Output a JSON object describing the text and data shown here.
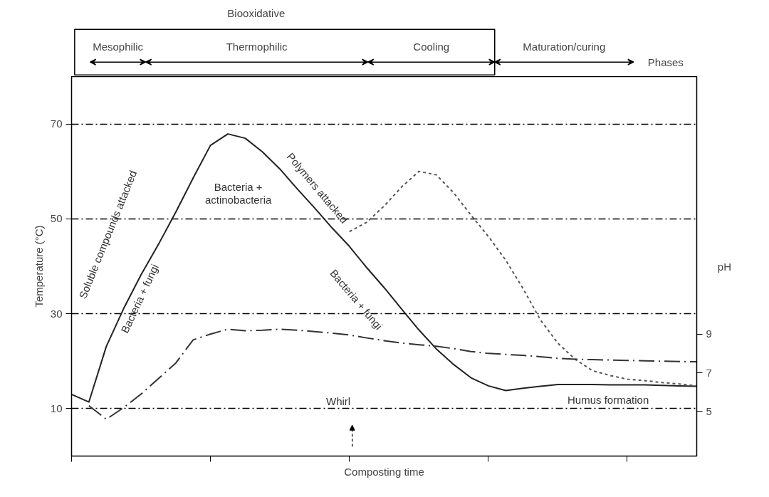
{
  "chart_data": {
    "type": "line",
    "xlabel": "Composting time",
    "ylabel": "Temperature (°C)",
    "y2label": "pH",
    "categories": [
      null,
      null,
      null,
      null,
      null,
      null,
      null,
      null,
      null,
      null,
      null,
      null,
      null,
      null,
      null,
      null,
      null,
      null,
      null,
      null,
      null,
      null,
      null,
      null,
      null,
      null,
      null,
      null,
      null,
      null,
      null,
      null,
      null,
      null,
      null,
      null,
      null
    ],
    "ylim": [
      0,
      80
    ],
    "yticks": [
      10,
      30,
      50,
      70
    ],
    "y2lim": [
      2.7,
      22.3
    ],
    "y2ticks": [
      5,
      7,
      9
    ],
    "grid": "y",
    "series": [
      {
        "color": "#222222",
        "line_style": "solid",
        "values": [
          13.0,
          11.4,
          23.1,
          31.1,
          38.2,
          44.6,
          51.4,
          58.6,
          65.5,
          67.9,
          67.0,
          64.1,
          60.5,
          56.3,
          52.3,
          48.1,
          44.2,
          39.7,
          35.5,
          31.0,
          26.6,
          22.6,
          19.3,
          16.5,
          14.8,
          13.8,
          14.3,
          14.7,
          15.1,
          15.1,
          15.1,
          15.0,
          15.0,
          15.0,
          14.9,
          14.8,
          14.7
        ]
      },
      {
        "color": "#555555",
        "line_style": "dashed",
        "values": [
          null,
          null,
          null,
          null,
          null,
          null,
          null,
          null,
          null,
          null,
          null,
          null,
          null,
          null,
          null,
          null,
          47.3,
          49.3,
          52.7,
          56.7,
          60.0,
          59.3,
          55.5,
          50.8,
          46.3,
          41.3,
          35.3,
          28.7,
          23.8,
          20.4,
          18.0,
          17.0,
          16.2,
          15.9,
          15.5,
          15.2,
          14.8
        ]
      },
      {
        "color": "#333333",
        "line_style": "dashdot",
        "axis": "y2",
        "values": [
          null,
          5.3,
          4.6,
          5.2,
          5.9,
          6.7,
          7.5,
          8.7,
          9.0,
          9.25,
          9.17,
          9.2,
          9.25,
          9.2,
          9.13,
          9.05,
          8.95,
          8.8,
          8.66,
          8.54,
          8.45,
          8.37,
          8.25,
          8.1,
          8.0,
          7.95,
          7.9,
          7.83,
          7.75,
          7.7,
          7.68,
          7.66,
          7.64,
          7.62,
          7.6,
          7.58,
          7.57
        ]
      }
    ],
    "annotations": [
      "Biooxidative",
      "Mesophilic",
      "Thermophilic",
      "Cooling",
      "Maturation/curing",
      "Phases",
      "Soluble compounds attacked",
      "Bacteria + fungi",
      "Bacteria +\nactinobacteria",
      "Polymers attacked",
      "Bacteria + fungi",
      "Whirl",
      "Humus formation"
    ]
  }
}
